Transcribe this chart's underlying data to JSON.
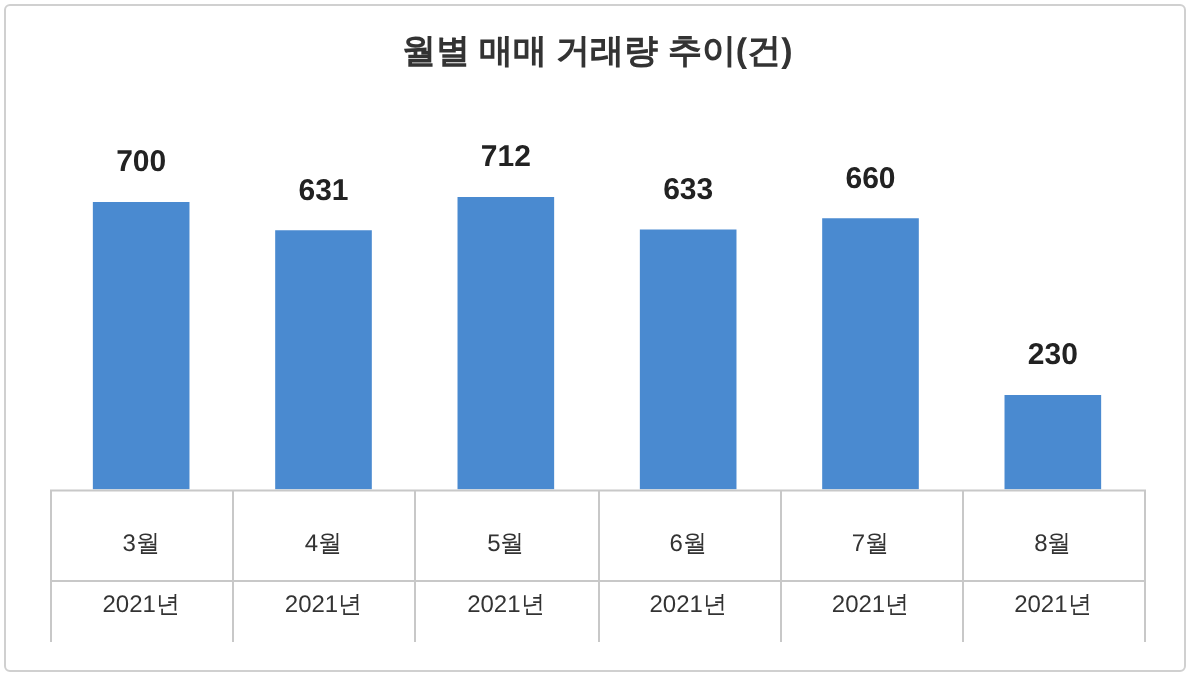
{
  "chart_data": {
    "type": "bar",
    "title": "월별 매매 거래량 추이(건)",
    "categories": [
      "3월\n2021년",
      "4월\n2021년",
      "5월\n2021년",
      "6월\n2021년",
      "7월\n2021년",
      "8월\n2021년"
    ],
    "values": [
      700,
      631,
      712,
      633,
      660,
      230
    ],
    "color": "#4a8ad0",
    "data_labels": true,
    "legend": false,
    "grid": false
  }
}
